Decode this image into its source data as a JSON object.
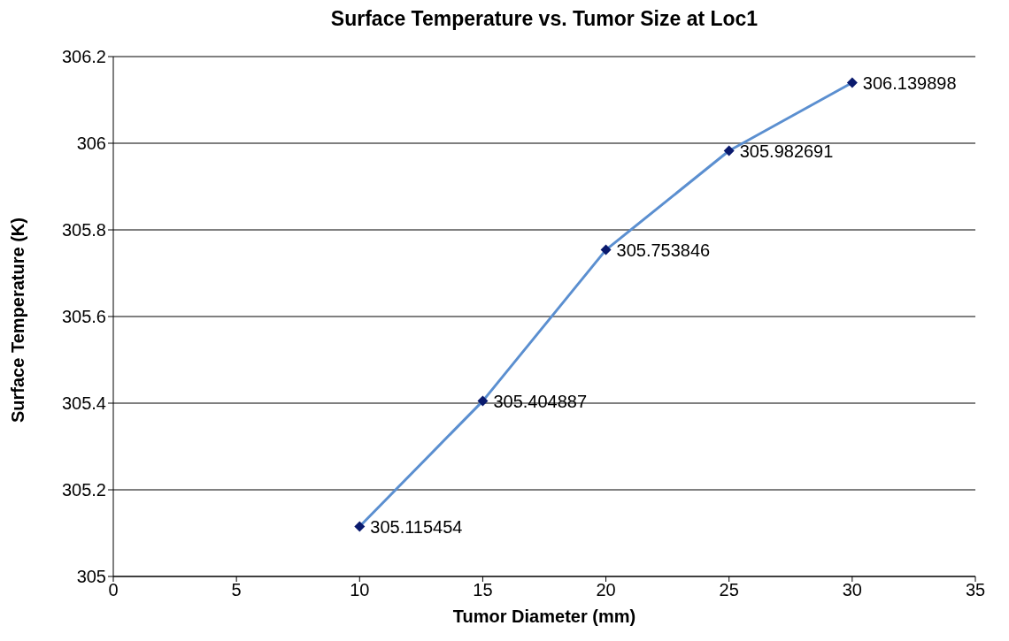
{
  "chart_data": {
    "type": "line",
    "title": "Surface Temperature vs. Tumor Size at Loc1",
    "xlabel": "Tumor Diameter (mm)",
    "ylabel": "Surface Temperature (K)",
    "x": [
      10,
      15,
      20,
      25,
      30
    ],
    "series": [
      {
        "color": "#5b8fd0",
        "values": [
          305.115454,
          305.404887,
          305.753846,
          305.982691,
          306.139898
        ]
      }
    ],
    "xlim": [
      0,
      35
    ],
    "xticks": [
      0,
      5,
      10,
      15,
      20,
      25,
      30,
      35
    ],
    "ylim": [
      305,
      306.2
    ],
    "yticks": [
      305,
      305.2,
      305.4,
      305.6,
      305.8,
      306,
      306.2
    ],
    "grid": "y",
    "legend": false,
    "marker": "diamond",
    "line_style": "solid",
    "data_labels": true
  }
}
